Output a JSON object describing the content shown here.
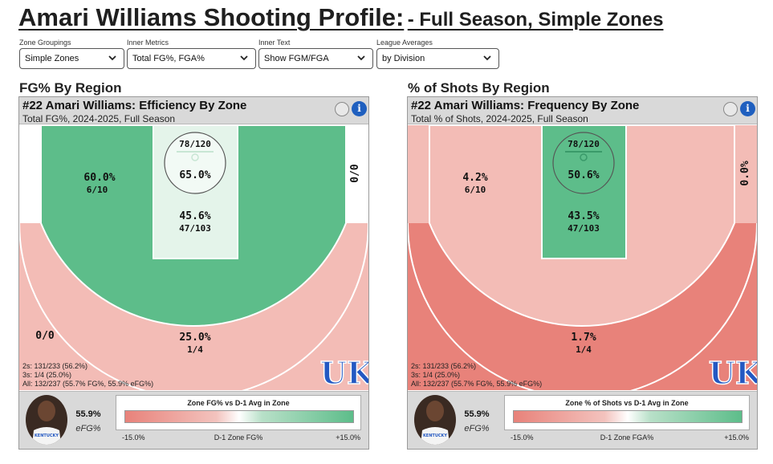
{
  "page": {
    "title_main": "Amari Williams Shooting Profile:",
    "title_sub": "- Full Season, Simple Zones"
  },
  "controls": [
    {
      "label": "Zone Groupings",
      "value": "Simple Zones"
    },
    {
      "label": "Inner Metrics",
      "value": "Total FG%, FGA%"
    },
    {
      "label": "Inner Text",
      "value": "Show FGM/FGA"
    },
    {
      "label": "League Averages",
      "value": "by Division"
    }
  ],
  "colors": {
    "green": "#5dbd8a",
    "light_green": "#c9ead6",
    "pale_green": "#e4f4ea",
    "red": "#e8827a",
    "light_red": "#f3bcb6",
    "accent_blue": "#1f5fbf",
    "uk_blue": "#2358c2"
  },
  "panels": [
    {
      "section_title": "FG% By Region",
      "header_title": "#22 Amari Williams: Efficiency By Zone",
      "header_sub": "Total FG%, 2024-2025, Full Season",
      "info_glyph": "i",
      "zones": {
        "restricted": {
          "main": "65.0%",
          "count": "78/120"
        },
        "paint": {
          "main": "45.6%",
          "count": "47/103"
        },
        "midrange": {
          "main": "60.0%",
          "count": "6/10"
        },
        "corner_right": {
          "main": "0/0",
          "count": ""
        },
        "corner_left": {
          "main": "0/0",
          "count": ""
        },
        "three_above_break": {
          "main": "25.0%",
          "count": "1/4"
        }
      },
      "stats": [
        "2s: 131/233 (56.2%)",
        "3s: 1/4 (25.0%)",
        "All: 132/237 (55.7% FG%, 55.9% eFG%)"
      ],
      "efg_value": "55.9%",
      "efg_label": "eFG%",
      "legend_title": "Zone FG% vs D-1 Avg in Zone",
      "legend_min": "-15.0%",
      "legend_mid": "D-1 Zone FG%",
      "legend_max": "+15.0%",
      "logo_text": "UK",
      "jersey_text": "KENTUCKY"
    },
    {
      "section_title": "% of Shots By Region",
      "header_title": "#22 Amari Williams: Frequency By Zone",
      "header_sub": "Total % of Shots, 2024-2025, Full Season",
      "info_glyph": "i",
      "zones": {
        "restricted": {
          "main": "50.6%",
          "count": "78/120"
        },
        "paint": {
          "main": "43.5%",
          "count": "47/103"
        },
        "midrange": {
          "main": "4.2%",
          "count": "6/10"
        },
        "corner_right": {
          "main": "0.0%",
          "count": ""
        },
        "corner_left": {
          "main": "",
          "count": ""
        },
        "three_above_break": {
          "main": "1.7%",
          "count": "1/4"
        }
      },
      "stats": [
        "2s: 131/233 (56.2%)",
        "3s: 1/4 (25.0%)",
        "All: 132/237 (55.7% FG%, 55.9% eFG%)"
      ],
      "efg_value": "55.9%",
      "efg_label": "eFG%",
      "legend_title": "Zone % of Shots vs D-1 Avg in Zone",
      "legend_min": "-15.0%",
      "legend_mid": "D-1 Zone FGA%",
      "legend_max": "+15.0%",
      "logo_text": "UK",
      "jersey_text": "KENTUCKY"
    }
  ],
  "chart_data": [
    {
      "type": "heatmap",
      "title": "#22 Amari Williams: Efficiency By Zone",
      "subtitle": "Total FG%, 2024-2025, Full Season",
      "zones": [
        {
          "zone": "restricted",
          "value": 65.0,
          "made": 78,
          "attempted": 120
        },
        {
          "zone": "paint",
          "value": 45.6,
          "made": 47,
          "attempted": 103
        },
        {
          "zone": "midrange",
          "value": 60.0,
          "made": 6,
          "attempted": 10
        },
        {
          "zone": "corner-right",
          "made": 0,
          "attempted": 0
        },
        {
          "zone": "corner-left",
          "made": 0,
          "attempted": 0
        },
        {
          "zone": "three-above-break",
          "value": 25.0,
          "made": 1,
          "attempted": 4
        }
      ],
      "legend": {
        "title": "Zone FG% vs D-1 Avg in Zone",
        "min": -15.0,
        "max": 15.0,
        "label": "D-1 Zone FG%"
      }
    },
    {
      "type": "heatmap",
      "title": "#22 Amari Williams: Frequency By Zone",
      "subtitle": "Total % of Shots, 2024-2025, Full Season",
      "zones": [
        {
          "zone": "restricted",
          "value": 50.6,
          "made": 78,
          "attempted": 120
        },
        {
          "zone": "paint",
          "value": 43.5,
          "made": 47,
          "attempted": 103
        },
        {
          "zone": "midrange",
          "value": 4.2,
          "made": 6,
          "attempted": 10
        },
        {
          "zone": "corner-right",
          "value": 0.0
        },
        {
          "zone": "three-above-break",
          "value": 1.7,
          "made": 1,
          "attempted": 4
        }
      ],
      "legend": {
        "title": "Zone % of Shots vs D-1 Avg in Zone",
        "min": -15.0,
        "max": 15.0,
        "label": "D-1 Zone FGA%"
      }
    }
  ]
}
